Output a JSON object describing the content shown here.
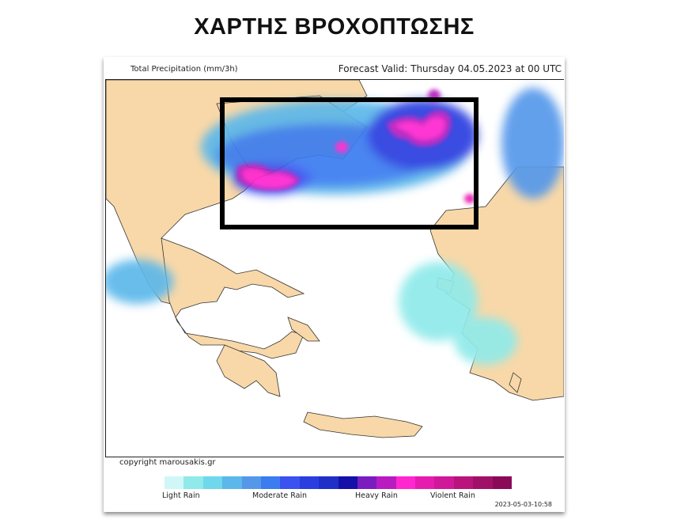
{
  "title": "ΧΑΡΤΗΣ ΒΡΟΧΟΠΤΩΣΗΣ",
  "map": {
    "variable_label": "Total Precipitation (mm/3h)",
    "forecast_valid": "Forecast Valid:  Thursday 04.05.2023 at 00 UTC",
    "land_color": "#f8d8a8",
    "highlight_box_color": "#000000",
    "copyright": "copyright marousakis.gr",
    "timestamp": "2023-05-03-10:58"
  },
  "legend": {
    "colors": [
      "#d0f7f7",
      "#90eaea",
      "#6fd8ec",
      "#5cb8ea",
      "#5598ea",
      "#3b7cf0",
      "#3a52f0",
      "#2a3ee0",
      "#1f2fc8",
      "#1410a8",
      "#7a1cc0",
      "#b81cc0",
      "#ff28d0",
      "#e61cb0",
      "#d0189a",
      "#b8147c",
      "#a01068",
      "#8a0a58"
    ],
    "labels": [
      "Light Rain",
      "Moderate Rain",
      "Heavy Rain",
      "Violent Rain"
    ]
  }
}
